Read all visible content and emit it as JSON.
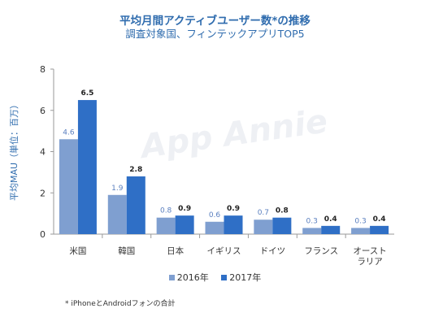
{
  "title": "平均月間アクティブユーザー数*の推移",
  "subtitle": "調査対象国、フィンテックアプリTOP5",
  "footnote": "* iPhoneとAndroidフォンの合計",
  "watermark": "App Annie",
  "colors": {
    "series_2016": "#7f9fd0",
    "series_2017": "#2f6fc6",
    "title": "#2f6cae"
  },
  "chart_data": {
    "type": "bar",
    "title": "平均月間アクティブユーザー数*の推移",
    "subtitle": "調査対象国、フィンテックアプリTOP5",
    "ylabel": "平均MAU（単位：百万）",
    "xlabel": "",
    "ylim": [
      0,
      8
    ],
    "yticks": [
      0,
      2,
      4,
      6,
      8
    ],
    "grid": false,
    "legend": "bottom",
    "categories": [
      [
        "米国"
      ],
      [
        "韓国"
      ],
      [
        "日本"
      ],
      [
        "イギリス"
      ],
      [
        "ドイツ"
      ],
      [
        "フランス"
      ],
      [
        "オースト",
        "ラリア"
      ]
    ],
    "series": [
      {
        "name": "2016年",
        "values": [
          4.6,
          1.9,
          0.8,
          0.6,
          0.7,
          0.3,
          0.3
        ],
        "labels": [
          "4.6",
          "1.9",
          "0.8",
          "0.6",
          "0.7",
          "0.3",
          "0.3"
        ]
      },
      {
        "name": "2017年",
        "values": [
          6.5,
          2.8,
          0.9,
          0.9,
          0.8,
          0.4,
          0.4
        ],
        "labels": [
          "6.5",
          "2.8",
          "0.9",
          "0.9",
          "0.8",
          "0.4",
          "0.4"
        ]
      }
    ]
  }
}
